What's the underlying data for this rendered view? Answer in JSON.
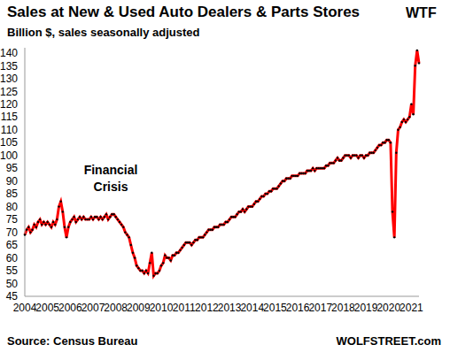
{
  "chart_data": {
    "type": "line",
    "title": "Sales at New & Used Auto Dealers & Parts Stores",
    "subtitle": "Billion $, sales seasonally adjusted",
    "annotations": [
      "Financial Crisis",
      "WTF"
    ],
    "source": "Source: Census Bureau",
    "credit": "WOLFSTREET.com",
    "color": "#ff0000",
    "marker": "circle",
    "grid": false,
    "categories": [
      "2004",
      null,
      null,
      null,
      null,
      null,
      null,
      null,
      null,
      null,
      null,
      null,
      "2005",
      null,
      null,
      null,
      null,
      null,
      null,
      null,
      null,
      null,
      null,
      null,
      "2006",
      null,
      null,
      null,
      null,
      null,
      null,
      null,
      null,
      null,
      null,
      null,
      "2007",
      null,
      null,
      null,
      null,
      null,
      null,
      null,
      null,
      null,
      null,
      null,
      "2008",
      null,
      null,
      null,
      null,
      null,
      null,
      null,
      null,
      null,
      null,
      null,
      "2009",
      null,
      null,
      null,
      null,
      null,
      null,
      null,
      null,
      null,
      null,
      null,
      "2010",
      null,
      null,
      null,
      null,
      null,
      null,
      null,
      null,
      null,
      null,
      null,
      "2011",
      null,
      null,
      null,
      null,
      null,
      null,
      null,
      null,
      null,
      null,
      null,
      "2012",
      null,
      null,
      null,
      null,
      null,
      null,
      null,
      null,
      null,
      null,
      null,
      "2013",
      null,
      null,
      null,
      null,
      null,
      null,
      null,
      null,
      null,
      null,
      null,
      "2014",
      null,
      null,
      null,
      null,
      null,
      null,
      null,
      null,
      null,
      null,
      null,
      "2015",
      null,
      null,
      null,
      null,
      null,
      null,
      null,
      null,
      null,
      null,
      null,
      "2016",
      null,
      null,
      null,
      null,
      null,
      null,
      null,
      null,
      null,
      null,
      null,
      "2017",
      null,
      null,
      null,
      null,
      null,
      null,
      null,
      null,
      null,
      null,
      null,
      "2018",
      null,
      null,
      null,
      null,
      null,
      null,
      null,
      null,
      null,
      null,
      null,
      "2019",
      null,
      null,
      null,
      null,
      null,
      null,
      null,
      null,
      null,
      null,
      null,
      "2020",
      null,
      null,
      null,
      null,
      null,
      null,
      null,
      null,
      null,
      null,
      null,
      "2021",
      null,
      null,
      null,
      null
    ],
    "values": [
      69,
      71,
      72,
      70,
      71,
      73,
      72,
      74,
      75,
      73,
      74,
      73,
      74,
      73,
      72,
      74,
      73,
      75,
      80,
      82,
      78,
      72,
      68,
      72,
      74,
      75,
      76,
      74,
      75,
      76,
      75,
      76,
      75,
      75,
      75,
      76,
      75,
      76,
      76,
      75,
      76,
      75,
      76,
      77,
      75,
      76,
      77,
      77,
      76,
      75,
      74,
      73,
      72,
      70,
      69,
      68,
      65,
      62,
      60,
      57,
      56,
      55,
      55,
      54,
      55,
      54,
      58,
      62,
      53,
      54,
      54,
      55,
      57,
      58,
      61,
      60,
      60,
      59,
      61,
      61,
      62,
      62,
      63,
      64,
      65,
      66,
      66,
      66,
      65,
      66,
      67,
      67,
      68,
      68,
      68,
      69,
      70,
      71,
      71,
      71,
      72,
      72,
      72,
      73,
      73,
      73,
      74,
      74,
      75,
      76,
      76,
      76,
      77,
      78,
      78,
      79,
      78,
      79,
      80,
      80,
      80,
      81,
      82,
      82,
      83,
      84,
      84,
      85,
      85,
      86,
      86,
      87,
      87,
      87,
      88,
      89,
      90,
      90,
      91,
      91,
      91,
      92,
      92,
      92,
      92,
      93,
      93,
      93,
      93,
      94,
      94,
      94,
      95,
      94,
      95,
      95,
      95,
      95,
      95,
      96,
      96,
      97,
      97,
      97,
      98,
      99,
      98,
      98,
      99,
      100,
      100,
      100,
      99,
      100,
      100,
      100,
      99,
      100,
      100,
      99,
      100,
      100,
      101,
      101,
      101,
      102,
      103,
      104,
      104,
      105,
      105,
      106,
      106,
      105,
      78,
      68,
      101,
      110,
      111,
      113,
      114,
      113,
      114,
      115,
      120,
      116,
      135,
      141,
      136
    ],
    "ylim": [
      45,
      142
    ],
    "yticks": [
      45,
      50,
      55,
      60,
      65,
      70,
      75,
      80,
      85,
      90,
      95,
      100,
      105,
      110,
      115,
      120,
      125,
      130,
      135,
      140
    ]
  }
}
